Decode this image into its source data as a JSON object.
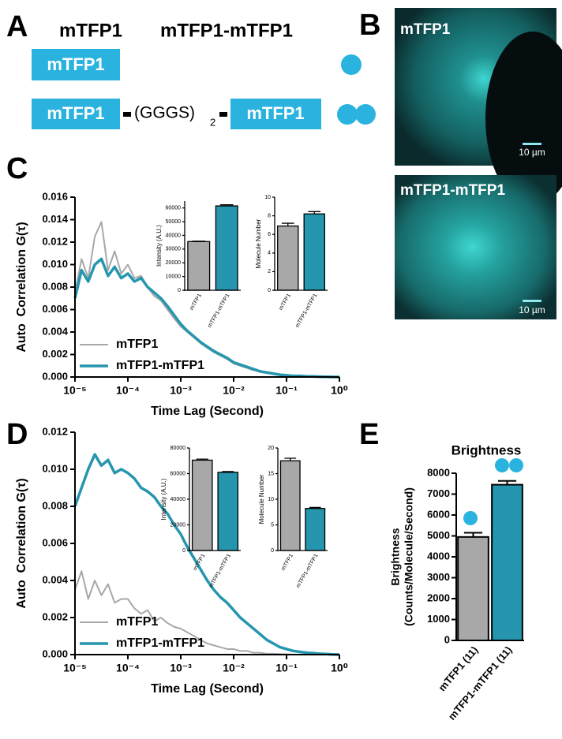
{
  "panel_labels": [
    "A",
    "B",
    "C",
    "D",
    "E"
  ],
  "panel_a": {
    "headers": [
      "mTFP1",
      "mTFP1-mTFP1"
    ],
    "monomer": "mTFP1",
    "dimer_left": "mTFP1",
    "linker": "(GGGS)",
    "linker_subscript": "2",
    "dimer_right": "mTFP1"
  },
  "panel_b": {
    "images": [
      {
        "label": "mTFP1",
        "scale": "10 µm"
      },
      {
        "label": "mTFP1-mTFP1",
        "scale": "10 µm"
      }
    ]
  },
  "chart_data": [
    {
      "type": "line",
      "xscale": "log",
      "legend": "lower left",
      "xlabel": "Time Lag (Second)",
      "ylabel": "Auto  Correlation G(τ)",
      "x": [
        1e-05,
        1.33e-05,
        1.78e-05,
        2.37e-05,
        3.16e-05,
        4.22e-05,
        5.62e-05,
        7.5e-05,
        0.0001,
        0.000133,
        0.000178,
        0.000237,
        0.000316,
        0.000422,
        0.000562,
        0.00075,
        0.001,
        0.00133,
        0.00178,
        0.00237,
        0.00316,
        0.00422,
        0.00562,
        0.0075,
        0.01,
        0.0133,
        0.0178,
        0.0237,
        0.0316,
        0.0422,
        0.0562,
        0.075,
        0.1,
        0.133,
        0.178,
        0.237,
        0.316,
        0.422,
        0.562,
        0.75,
        1
      ],
      "xlim": [
        1e-05,
        1
      ],
      "xticks": [
        {
          "value": 1e-05,
          "label": "10⁻⁵"
        },
        {
          "value": 0.0001,
          "label": "10⁻⁴"
        },
        {
          "value": 0.001,
          "label": "10⁻³"
        },
        {
          "value": 0.01,
          "label": "10⁻²"
        },
        {
          "value": 0.1,
          "label": "10⁻¹"
        },
        {
          "value": 1,
          "label": "10⁰"
        }
      ],
      "ylim": [
        0,
        0.016
      ],
      "yticks": [
        {
          "value": 0,
          "label": "0.000"
        },
        {
          "value": 0.002,
          "label": "0.002"
        },
        {
          "value": 0.004,
          "label": "0.004"
        },
        {
          "value": 0.006,
          "label": "0.006"
        },
        {
          "value": 0.008,
          "label": "0.008"
        },
        {
          "value": 0.01,
          "label": "0.010"
        },
        {
          "value": 0.012,
          "label": "0.012"
        },
        {
          "value": 0.014,
          "label": "0.014"
        },
        {
          "value": 0.016,
          "label": "0.016"
        }
      ],
      "series": [
        {
          "name": "mTFP1",
          "color": "#a8a8a8",
          "width": 2,
          "values": [
            0.0075,
            0.0105,
            0.0088,
            0.0125,
            0.0138,
            0.0095,
            0.0112,
            0.0092,
            0.01,
            0.0088,
            0.009,
            0.008,
            0.0072,
            0.0068,
            0.006,
            0.0052,
            0.0045,
            0.004,
            0.0035,
            0.003,
            0.0026,
            0.0022,
            0.0019,
            0.0016,
            0.0012,
            0.001,
            0.0008,
            0.0006,
            0.0005,
            0.0004,
            0.0003,
            0.0002,
            0.00015,
            0.0001,
            0.0001,
            5e-05,
            5e-05,
            3e-05,
            2e-05,
            0,
            0
          ]
        },
        {
          "name": "mTFP1-mTFP1",
          "color": "#2596ae",
          "width": 3.5,
          "values": [
            0.007,
            0.0095,
            0.0085,
            0.01,
            0.0105,
            0.009,
            0.0098,
            0.0088,
            0.0092,
            0.0085,
            0.0088,
            0.008,
            0.0075,
            0.007,
            0.0063,
            0.0055,
            0.0047,
            0.0041,
            0.0036,
            0.0031,
            0.0027,
            0.0023,
            0.002,
            0.0017,
            0.0013,
            0.0011,
            0.0009,
            0.0007,
            0.0005,
            0.0004,
            0.0003,
            0.0002,
            0.00015,
            0.0001,
            0.0001,
            5e-05,
            5e-05,
            3e-05,
            2e-05,
            0,
            0
          ]
        }
      ]
    },
    {
      "type": "bar",
      "ylabel": "Intensity (A.U.)",
      "categories": [
        "mTFP1",
        "mTFP1-mTFP1"
      ],
      "colors": [
        "#a8a8a8",
        "#2596ae"
      ],
      "values": [
        35500,
        61500
      ],
      "errors": [
        300,
        800
      ],
      "ylim": [
        0,
        65000
      ],
      "yticks": [
        0,
        10000,
        20000,
        30000,
        40000,
        50000,
        60000
      ]
    },
    {
      "type": "bar",
      "ylabel": "Molecule Number",
      "categories": [
        "mTFP1",
        "mTFP1-mTFP1"
      ],
      "colors": [
        "#a8a8a8",
        "#2596ae"
      ],
      "values": [
        6.9,
        8.2
      ],
      "errors": [
        0.3,
        0.25
      ],
      "ylim": [
        0,
        10
      ],
      "yticks": [
        0,
        2,
        4,
        6,
        8,
        10
      ]
    },
    {
      "type": "line",
      "xscale": "log",
      "legend": "lower left",
      "xlabel": "Time Lag (Second)",
      "ylabel": "Auto  Correlation G(τ)",
      "x": [
        1e-05,
        1.33e-05,
        1.78e-05,
        2.37e-05,
        3.16e-05,
        4.22e-05,
        5.62e-05,
        7.5e-05,
        0.0001,
        0.000133,
        0.000178,
        0.000237,
        0.000316,
        0.000422,
        0.000562,
        0.00075,
        0.001,
        0.00133,
        0.00178,
        0.00237,
        0.00316,
        0.00422,
        0.00562,
        0.0075,
        0.01,
        0.0133,
        0.0178,
        0.0237,
        0.0316,
        0.0422,
        0.0562,
        0.075,
        0.1,
        0.133,
        0.178,
        0.237,
        0.316,
        0.422,
        0.562,
        0.75,
        1
      ],
      "xlim": [
        1e-05,
        1
      ],
      "xticks": [
        {
          "value": 1e-05,
          "label": "10⁻⁵"
        },
        {
          "value": 0.0001,
          "label": "10⁻⁴"
        },
        {
          "value": 0.001,
          "label": "10⁻³"
        },
        {
          "value": 0.01,
          "label": "10⁻²"
        },
        {
          "value": 0.1,
          "label": "10⁻¹"
        },
        {
          "value": 1,
          "label": "10⁰"
        }
      ],
      "ylim": [
        0,
        0.012
      ],
      "yticks": [
        {
          "value": 0,
          "label": "0.000"
        },
        {
          "value": 0.002,
          "label": "0.002"
        },
        {
          "value": 0.004,
          "label": "0.004"
        },
        {
          "value": 0.006,
          "label": "0.006"
        },
        {
          "value": 0.008,
          "label": "0.008"
        },
        {
          "value": 0.01,
          "label": "0.010"
        },
        {
          "value": 0.012,
          "label": "0.012"
        }
      ],
      "series": [
        {
          "name": "mTFP1",
          "color": "#a8a8a8",
          "width": 2,
          "values": [
            0.0035,
            0.0045,
            0.003,
            0.004,
            0.0032,
            0.0038,
            0.0028,
            0.003,
            0.003,
            0.0025,
            0.0022,
            0.0024,
            0.0018,
            0.002,
            0.0017,
            0.0015,
            0.0014,
            0.0012,
            0.001,
            0.0008,
            0.0006,
            0.0005,
            0.0004,
            0.0003,
            0.0003,
            0.0002,
            0.0002,
            0.0001,
            0.0001,
            5e-05,
            5e-05,
            3e-05,
            2e-05,
            0,
            0,
            0,
            0,
            0,
            0,
            0,
            0
          ]
        },
        {
          "name": "mTFP1-mTFP1",
          "color": "#2596ae",
          "width": 3.5,
          "values": [
            0.008,
            0.009,
            0.01,
            0.0108,
            0.0102,
            0.0105,
            0.0098,
            0.01,
            0.0098,
            0.0095,
            0.009,
            0.0088,
            0.0085,
            0.008,
            0.0076,
            0.007,
            0.0065,
            0.0058,
            0.0052,
            0.0046,
            0.004,
            0.0035,
            0.0031,
            0.0028,
            0.0024,
            0.002,
            0.0017,
            0.0014,
            0.0011,
            0.0008,
            0.0006,
            0.0004,
            0.0003,
            0.0002,
            0.00015,
            0.0001,
            8e-05,
            5e-05,
            3e-05,
            1e-05,
            0
          ]
        }
      ]
    },
    {
      "type": "bar",
      "ylabel": "Intensity (A.U.)",
      "categories": [
        "mTFP1",
        "mTFP1-mTFP1"
      ],
      "colors": [
        "#a8a8a8",
        "#2596ae"
      ],
      "values": [
        70500,
        61000
      ],
      "errors": [
        800,
        600
      ],
      "ylim": [
        0,
        80000
      ],
      "yticks": [
        0,
        20000,
        40000,
        60000,
        80000
      ]
    },
    {
      "type": "bar",
      "ylabel": "Molecule Number",
      "categories": [
        "mTFP1",
        "mTFP1-mTFP1"
      ],
      "colors": [
        "#a8a8a8",
        "#2596ae"
      ],
      "values": [
        17.5,
        8.2
      ],
      "errors": [
        0.5,
        0.2
      ],
      "ylim": [
        0,
        20
      ],
      "yticks": [
        0,
        5,
        10,
        15,
        20
      ]
    },
    {
      "type": "bar",
      "title": "Brightness",
      "ylabel_lines": [
        "Brightness",
        "(Counts/Molecule/Second)"
      ],
      "categories": [
        "mTFP1 (11)",
        "mTFP1-mTFP1 (11)"
      ],
      "colors": [
        "#a8a8a8",
        "#2596ae"
      ],
      "values": [
        4950,
        7450
      ],
      "errors": [
        200,
        180
      ],
      "ylim": [
        0,
        8000
      ],
      "yticks": [
        0,
        1000,
        2000,
        3000,
        4000,
        5000,
        6000,
        7000,
        8000
      ]
    }
  ]
}
